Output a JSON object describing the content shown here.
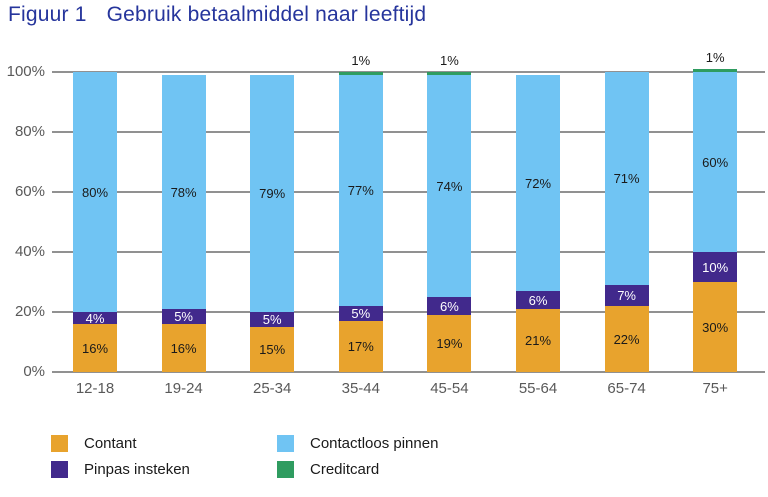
{
  "title": {
    "figure_label": "Figuur 1",
    "text": "Gebruik betaalmiddel naar leeftijd"
  },
  "colors": {
    "title_text": "#26359C",
    "axis_text": "#595959",
    "gridline": "#919191",
    "bar_label_dark": "#1A1A1A",
    "bar_label_light": "#FFFFFF",
    "background": "#FFFFFF"
  },
  "chart_data": {
    "type": "bar",
    "stacked": true,
    "title": "Figuur 1  Gebruik betaalmiddel naar leeftijd",
    "unit": "%",
    "categories": [
      "12-18",
      "19-24",
      "25-34",
      "35-44",
      "45-54",
      "55-64",
      "65-74",
      "75+"
    ],
    "series": [
      {
        "name": "Contant",
        "color": "#E8A32D",
        "label_color": "#1A1A1A",
        "values": [
          16,
          16,
          15,
          17,
          19,
          21,
          22,
          30
        ]
      },
      {
        "name": "Pinpas insteken",
        "color": "#41298C",
        "label_color": "#FFFFFF",
        "values": [
          4,
          5,
          5,
          5,
          6,
          6,
          7,
          10
        ]
      },
      {
        "name": "Contactloos pinnen",
        "color": "#70C4F3",
        "label_color": "#1A1A1A",
        "values": [
          80,
          78,
          79,
          77,
          74,
          72,
          71,
          60
        ]
      },
      {
        "name": "Creditcard",
        "color": "#2F9C60",
        "label_color": "#1A1A1A",
        "label_position": "above",
        "values": [
          0,
          0,
          0,
          1,
          1,
          0,
          0,
          1
        ]
      }
    ],
    "yticks": [
      {
        "value": 0,
        "label": "0%"
      },
      {
        "value": 20,
        "label": "20%"
      },
      {
        "value": 40,
        "label": "40%"
      },
      {
        "value": 60,
        "label": "60%"
      },
      {
        "value": 80,
        "label": "80%"
      },
      {
        "value": 100,
        "label": "100%"
      }
    ],
    "ylim": [
      0,
      100
    ],
    "grid": true,
    "legend_position": "bottom",
    "legend_columns": 2
  }
}
